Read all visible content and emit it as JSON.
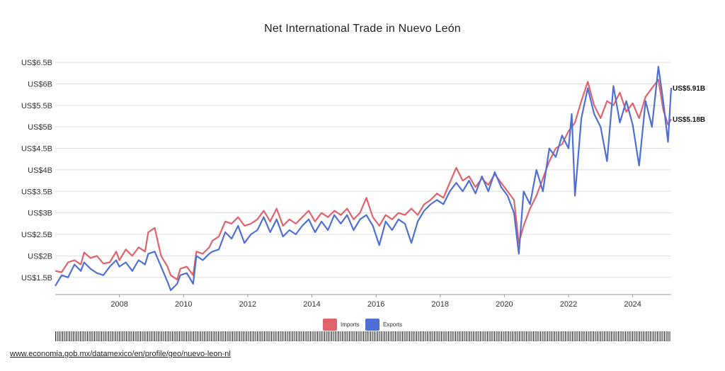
{
  "title": "Net International Trade in Nuevo León",
  "source_link": "www.economia.gob.mx/datamexico/en/profile/geo/nuevo-leon-nl",
  "end_labels": {
    "exports": "US$5.91B",
    "imports": "US$5.18B"
  },
  "colors": {
    "imports": "#e0636b",
    "exports": "#4e6fd6",
    "grid": "#dddddd",
    "axis": "#999999"
  },
  "chart_data": {
    "type": "line",
    "title": "Net International Trade in Nuevo León",
    "xlabel": "",
    "ylabel": "",
    "xlim": [
      2006.0,
      2025.2
    ],
    "ylim": [
      1.2,
      6.6
    ],
    "x_ticks": [
      2008,
      2010,
      2012,
      2014,
      2016,
      2018,
      2020,
      2022,
      2024
    ],
    "y_ticks": [
      {
        "value": 1.5,
        "label": "US$1.5B"
      },
      {
        "value": 2.0,
        "label": "US$2B"
      },
      {
        "value": 2.5,
        "label": "US$2.5B"
      },
      {
        "value": 3.0,
        "label": "US$3B"
      },
      {
        "value": 3.5,
        "label": "US$3.5B"
      },
      {
        "value": 4.0,
        "label": "US$4B"
      },
      {
        "value": 4.5,
        "label": "US$4.5B"
      },
      {
        "value": 5.0,
        "label": "US$5B"
      },
      {
        "value": 5.5,
        "label": "US$5.5B"
      },
      {
        "value": 6.0,
        "label": "US$6B"
      },
      {
        "value": 6.5,
        "label": "US$6.5B"
      }
    ],
    "grid": true,
    "legend_position": "bottom",
    "series": [
      {
        "name": "Imports",
        "color": "#e0636b",
        "points": [
          [
            2006.0,
            1.65
          ],
          [
            2006.2,
            1.62
          ],
          [
            2006.4,
            1.85
          ],
          [
            2006.6,
            1.9
          ],
          [
            2006.8,
            1.8
          ],
          [
            2006.9,
            2.08
          ],
          [
            2007.1,
            1.95
          ],
          [
            2007.3,
            2.0
          ],
          [
            2007.5,
            1.82
          ],
          [
            2007.7,
            1.85
          ],
          [
            2007.9,
            2.1
          ],
          [
            2008.0,
            1.9
          ],
          [
            2008.2,
            2.15
          ],
          [
            2008.4,
            2.0
          ],
          [
            2008.6,
            2.2
          ],
          [
            2008.8,
            2.1
          ],
          [
            2008.9,
            2.55
          ],
          [
            2009.1,
            2.65
          ],
          [
            2009.3,
            2.0
          ],
          [
            2009.5,
            1.75
          ],
          [
            2009.6,
            1.55
          ],
          [
            2009.8,
            1.45
          ],
          [
            2009.9,
            1.7
          ],
          [
            2010.1,
            1.75
          ],
          [
            2010.3,
            1.55
          ],
          [
            2010.4,
            2.1
          ],
          [
            2010.6,
            2.05
          ],
          [
            2010.8,
            2.2
          ],
          [
            2010.9,
            2.35
          ],
          [
            2011.1,
            2.45
          ],
          [
            2011.3,
            2.8
          ],
          [
            2011.5,
            2.75
          ],
          [
            2011.7,
            2.9
          ],
          [
            2011.9,
            2.7
          ],
          [
            2012.1,
            2.75
          ],
          [
            2012.3,
            2.85
          ],
          [
            2012.5,
            3.05
          ],
          [
            2012.7,
            2.8
          ],
          [
            2012.9,
            3.1
          ],
          [
            2013.1,
            2.7
          ],
          [
            2013.3,
            2.85
          ],
          [
            2013.5,
            2.75
          ],
          [
            2013.7,
            2.9
          ],
          [
            2013.9,
            3.05
          ],
          [
            2014.1,
            2.8
          ],
          [
            2014.3,
            3.0
          ],
          [
            2014.5,
            2.9
          ],
          [
            2014.7,
            3.05
          ],
          [
            2014.9,
            2.95
          ],
          [
            2015.1,
            3.1
          ],
          [
            2015.3,
            2.85
          ],
          [
            2015.5,
            3.0
          ],
          [
            2015.7,
            3.35
          ],
          [
            2015.9,
            2.9
          ],
          [
            2016.1,
            2.7
          ],
          [
            2016.3,
            2.95
          ],
          [
            2016.5,
            2.85
          ],
          [
            2016.7,
            3.0
          ],
          [
            2016.9,
            2.95
          ],
          [
            2017.1,
            3.1
          ],
          [
            2017.3,
            2.95
          ],
          [
            2017.5,
            3.2
          ],
          [
            2017.7,
            3.3
          ],
          [
            2017.9,
            3.45
          ],
          [
            2018.1,
            3.35
          ],
          [
            2018.3,
            3.7
          ],
          [
            2018.5,
            4.05
          ],
          [
            2018.7,
            3.75
          ],
          [
            2018.9,
            3.85
          ],
          [
            2019.1,
            3.6
          ],
          [
            2019.3,
            3.8
          ],
          [
            2019.5,
            3.65
          ],
          [
            2019.7,
            3.9
          ],
          [
            2019.9,
            3.7
          ],
          [
            2020.1,
            3.5
          ],
          [
            2020.3,
            3.3
          ],
          [
            2020.45,
            2.3
          ],
          [
            2020.6,
            2.7
          ],
          [
            2020.8,
            3.1
          ],
          [
            2021.0,
            3.4
          ],
          [
            2021.2,
            3.8
          ],
          [
            2021.4,
            4.2
          ],
          [
            2021.6,
            4.5
          ],
          [
            2021.8,
            4.6
          ],
          [
            2022.0,
            4.9
          ],
          [
            2022.2,
            5.1
          ],
          [
            2022.4,
            5.6
          ],
          [
            2022.6,
            6.05
          ],
          [
            2022.8,
            5.5
          ],
          [
            2023.0,
            5.2
          ],
          [
            2023.2,
            5.6
          ],
          [
            2023.4,
            5.5
          ],
          [
            2023.6,
            5.8
          ],
          [
            2023.8,
            5.35
          ],
          [
            2024.0,
            5.55
          ],
          [
            2024.2,
            5.2
          ],
          [
            2024.4,
            5.7
          ],
          [
            2024.6,
            5.9
          ],
          [
            2024.8,
            6.1
          ],
          [
            2024.95,
            5.4
          ],
          [
            2025.1,
            5.05
          ],
          [
            2025.2,
            5.18
          ]
        ]
      },
      {
        "name": "Exports",
        "color": "#4e6fd6",
        "points": [
          [
            2006.0,
            1.3
          ],
          [
            2006.2,
            1.55
          ],
          [
            2006.4,
            1.5
          ],
          [
            2006.6,
            1.8
          ],
          [
            2006.8,
            1.65
          ],
          [
            2006.9,
            1.85
          ],
          [
            2007.1,
            1.7
          ],
          [
            2007.3,
            1.6
          ],
          [
            2007.5,
            1.55
          ],
          [
            2007.7,
            1.75
          ],
          [
            2007.9,
            1.9
          ],
          [
            2008.0,
            1.75
          ],
          [
            2008.2,
            1.85
          ],
          [
            2008.4,
            1.65
          ],
          [
            2008.6,
            1.9
          ],
          [
            2008.8,
            1.8
          ],
          [
            2008.9,
            2.05
          ],
          [
            2009.1,
            2.1
          ],
          [
            2009.3,
            1.75
          ],
          [
            2009.5,
            1.4
          ],
          [
            2009.6,
            1.2
          ],
          [
            2009.8,
            1.35
          ],
          [
            2009.9,
            1.55
          ],
          [
            2010.1,
            1.6
          ],
          [
            2010.3,
            1.35
          ],
          [
            2010.4,
            2.0
          ],
          [
            2010.6,
            1.9
          ],
          [
            2010.8,
            2.05
          ],
          [
            2010.9,
            2.1
          ],
          [
            2011.1,
            2.15
          ],
          [
            2011.3,
            2.55
          ],
          [
            2011.5,
            2.4
          ],
          [
            2011.7,
            2.7
          ],
          [
            2011.9,
            2.3
          ],
          [
            2012.1,
            2.5
          ],
          [
            2012.3,
            2.6
          ],
          [
            2012.5,
            2.9
          ],
          [
            2012.7,
            2.55
          ],
          [
            2012.9,
            2.85
          ],
          [
            2013.1,
            2.45
          ],
          [
            2013.3,
            2.6
          ],
          [
            2013.5,
            2.5
          ],
          [
            2013.7,
            2.7
          ],
          [
            2013.9,
            2.85
          ],
          [
            2014.1,
            2.55
          ],
          [
            2014.3,
            2.8
          ],
          [
            2014.5,
            2.6
          ],
          [
            2014.7,
            2.95
          ],
          [
            2014.9,
            2.75
          ],
          [
            2015.1,
            2.95
          ],
          [
            2015.3,
            2.6
          ],
          [
            2015.5,
            2.85
          ],
          [
            2015.7,
            2.95
          ],
          [
            2015.9,
            2.7
          ],
          [
            2016.1,
            2.25
          ],
          [
            2016.3,
            2.8
          ],
          [
            2016.5,
            2.6
          ],
          [
            2016.7,
            2.85
          ],
          [
            2016.9,
            2.75
          ],
          [
            2017.1,
            2.3
          ],
          [
            2017.3,
            2.8
          ],
          [
            2017.5,
            3.05
          ],
          [
            2017.7,
            3.2
          ],
          [
            2017.9,
            3.3
          ],
          [
            2018.1,
            3.2
          ],
          [
            2018.3,
            3.5
          ],
          [
            2018.5,
            3.7
          ],
          [
            2018.7,
            3.5
          ],
          [
            2018.9,
            3.75
          ],
          [
            2019.1,
            3.45
          ],
          [
            2019.3,
            3.85
          ],
          [
            2019.5,
            3.5
          ],
          [
            2019.7,
            3.95
          ],
          [
            2019.9,
            3.6
          ],
          [
            2020.1,
            3.4
          ],
          [
            2020.3,
            3.0
          ],
          [
            2020.45,
            2.05
          ],
          [
            2020.6,
            3.5
          ],
          [
            2020.8,
            3.2
          ],
          [
            2021.0,
            4.0
          ],
          [
            2021.2,
            3.5
          ],
          [
            2021.4,
            4.5
          ],
          [
            2021.6,
            4.3
          ],
          [
            2021.8,
            4.8
          ],
          [
            2022.0,
            4.5
          ],
          [
            2022.1,
            5.3
          ],
          [
            2022.2,
            3.4
          ],
          [
            2022.4,
            5.2
          ],
          [
            2022.6,
            5.9
          ],
          [
            2022.8,
            5.3
          ],
          [
            2023.0,
            5.0
          ],
          [
            2023.2,
            4.2
          ],
          [
            2023.4,
            5.95
          ],
          [
            2023.6,
            5.1
          ],
          [
            2023.8,
            5.6
          ],
          [
            2024.0,
            5.05
          ],
          [
            2024.2,
            4.1
          ],
          [
            2024.4,
            5.6
          ],
          [
            2024.6,
            5.0
          ],
          [
            2024.8,
            6.4
          ],
          [
            2024.95,
            5.6
          ],
          [
            2025.1,
            4.65
          ],
          [
            2025.2,
            5.91
          ]
        ]
      }
    ]
  }
}
